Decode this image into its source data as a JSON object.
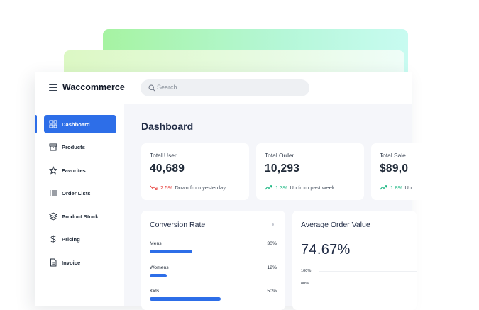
{
  "app": {
    "brand": "Waccommerce"
  },
  "search": {
    "placeholder": "Search"
  },
  "sidebar": {
    "items": [
      {
        "label": "Dashboard",
        "icon": "grid-icon",
        "active": true
      },
      {
        "label": "Products",
        "icon": "box-icon",
        "active": false
      },
      {
        "label": "Favorites",
        "icon": "star-icon",
        "active": false
      },
      {
        "label": "Order Lists",
        "icon": "list-icon",
        "active": false
      },
      {
        "label": "Product Stock",
        "icon": "layers-icon",
        "active": false
      },
      {
        "label": "Pricing",
        "icon": "dollar-icon",
        "active": false
      },
      {
        "label": "Invoice",
        "icon": "document-icon",
        "active": false
      }
    ]
  },
  "main": {
    "title": "Dashboard",
    "stats": [
      {
        "label": "Total User",
        "value": "40,689",
        "trend_direction": "down",
        "trend_pct": "2.5%",
        "trend_text": "Down from yesterday"
      },
      {
        "label": "Total Order",
        "value": "10,293",
        "trend_direction": "up",
        "trend_pct": "1.3%",
        "trend_text": "Up from past week"
      },
      {
        "label": "Total Sale",
        "value": "$89,0",
        "trend_direction": "up",
        "trend_pct": "1.8%",
        "trend_text": "Up"
      }
    ],
    "conversion": {
      "title": "Conversion Rate",
      "rows": [
        {
          "name": "Mens",
          "value": "30%",
          "fill": 0.3
        },
        {
          "name": "Womens",
          "value": "12%",
          "fill": 0.12
        },
        {
          "name": "Kids",
          "value": "50%",
          "fill": 0.5
        }
      ]
    },
    "aov": {
      "title": "Average Order Value",
      "value": "74.67%",
      "ticks": [
        "100%",
        "80%"
      ]
    }
  },
  "colors": {
    "accent": "#2d6ee8",
    "down": "#e53935",
    "up": "#16b57f"
  }
}
